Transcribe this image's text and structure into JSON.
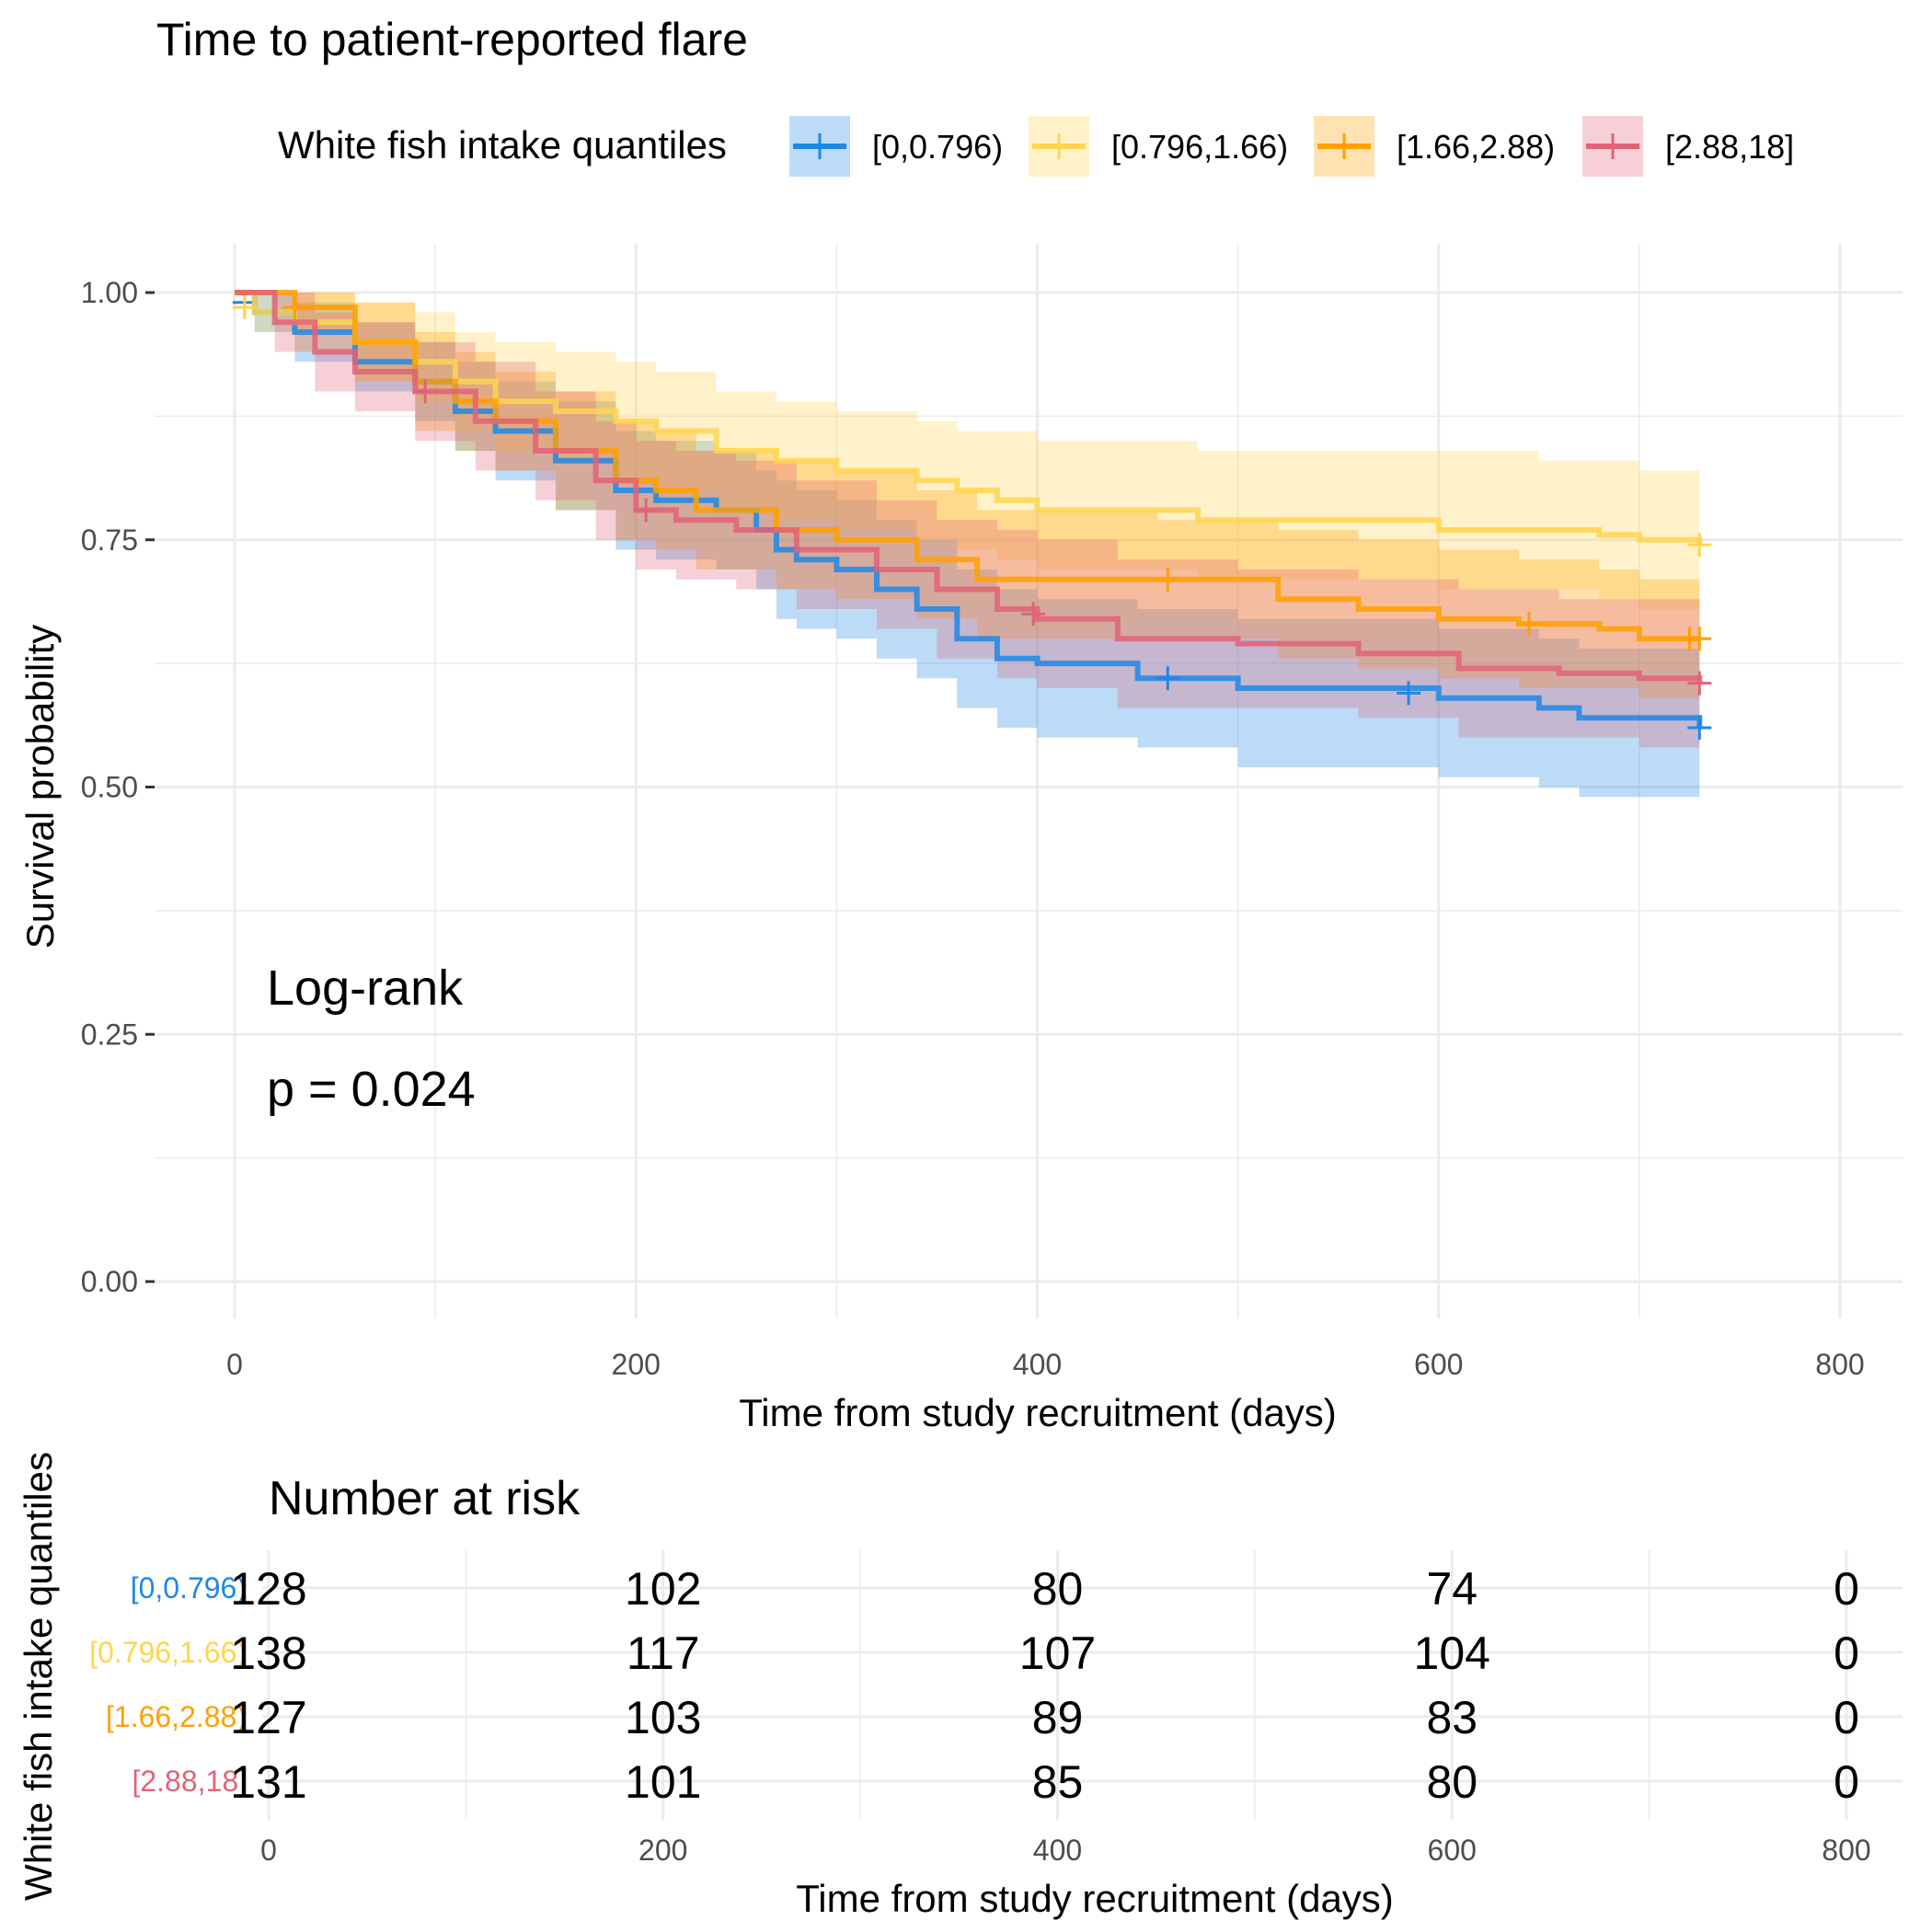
{
  "chart_data": [
    {
      "type": "line",
      "subtype": "kaplan-meier",
      "title": "Time to patient-reported flare",
      "xlabel": "Time from study recruitment (days)",
      "ylabel": "Survival probability",
      "xlim": [
        0,
        800
      ],
      "ylim": [
        0,
        1
      ],
      "xticks": [
        "0",
        "200",
        "400",
        "600",
        "800"
      ],
      "yticks": [
        "0.00",
        "0.25",
        "0.50",
        "0.75",
        "1.00"
      ],
      "grid": true,
      "legend": {
        "title": "White fish intake quantiles",
        "position": "top"
      },
      "annotation": {
        "line1": "Log-rank",
        "line2": "p = 0.024"
      },
      "series": [
        {
          "name": "[0,0.796)",
          "color": "#1E88E5",
          "x": [
            0,
            10,
            30,
            60,
            90,
            110,
            130,
            160,
            190,
            210,
            240,
            260,
            270,
            280,
            300,
            320,
            340,
            360,
            380,
            400,
            420,
            450,
            480,
            500,
            560,
            600,
            650,
            670,
            730
          ],
          "y": [
            1.0,
            0.98,
            0.96,
            0.93,
            0.91,
            0.88,
            0.86,
            0.83,
            0.8,
            0.79,
            0.78,
            0.76,
            0.74,
            0.73,
            0.72,
            0.7,
            0.68,
            0.65,
            0.63,
            0.625,
            0.625,
            0.61,
            0.61,
            0.6,
            0.6,
            0.59,
            0.58,
            0.57,
            0.56
          ],
          "lower": [
            1.0,
            0.96,
            0.93,
            0.9,
            0.87,
            0.84,
            0.81,
            0.78,
            0.74,
            0.73,
            0.72,
            0.7,
            0.67,
            0.66,
            0.65,
            0.63,
            0.61,
            0.58,
            0.56,
            0.55,
            0.55,
            0.54,
            0.54,
            0.52,
            0.52,
            0.51,
            0.5,
            0.49,
            0.48
          ],
          "upper": [
            1.0,
            1.0,
            0.99,
            0.97,
            0.95,
            0.93,
            0.91,
            0.89,
            0.86,
            0.85,
            0.84,
            0.82,
            0.81,
            0.8,
            0.79,
            0.77,
            0.75,
            0.72,
            0.7,
            0.69,
            0.69,
            0.68,
            0.68,
            0.67,
            0.67,
            0.66,
            0.65,
            0.64,
            0.63
          ],
          "censored": [
            [
              5,
              0.99
            ],
            [
              465,
              0.61
            ],
            [
              585,
              0.595
            ],
            [
              730,
              0.56
            ]
          ]
        },
        {
          "name": "[0.796,1.66)",
          "color": "#FFD54F",
          "x": [
            0,
            10,
            30,
            60,
            90,
            110,
            130,
            160,
            190,
            210,
            240,
            270,
            300,
            340,
            360,
            380,
            400,
            420,
            480,
            520,
            600,
            650,
            680,
            700,
            730
          ],
          "y": [
            1.0,
            0.98,
            0.97,
            0.95,
            0.93,
            0.91,
            0.89,
            0.88,
            0.87,
            0.86,
            0.84,
            0.83,
            0.82,
            0.81,
            0.8,
            0.79,
            0.78,
            0.78,
            0.77,
            0.77,
            0.76,
            0.76,
            0.755,
            0.75,
            0.745
          ],
          "lower": [
            1.0,
            0.96,
            0.94,
            0.91,
            0.89,
            0.86,
            0.84,
            0.83,
            0.81,
            0.8,
            0.78,
            0.77,
            0.76,
            0.75,
            0.74,
            0.73,
            0.72,
            0.72,
            0.71,
            0.71,
            0.7,
            0.7,
            0.69,
            0.68,
            0.67
          ],
          "upper": [
            1.0,
            1.0,
            1.0,
            0.99,
            0.98,
            0.96,
            0.95,
            0.94,
            0.93,
            0.92,
            0.9,
            0.89,
            0.88,
            0.87,
            0.86,
            0.86,
            0.85,
            0.85,
            0.84,
            0.84,
            0.84,
            0.83,
            0.83,
            0.82,
            0.82
          ],
          "censored": [
            [
              5,
              0.985
            ],
            [
              730,
              0.745
            ]
          ]
        },
        {
          "name": "[1.66,2.88)",
          "color": "#FFA000",
          "x": [
            0,
            30,
            60,
            90,
            110,
            130,
            160,
            190,
            210,
            230,
            270,
            300,
            340,
            370,
            400,
            460,
            520,
            560,
            600,
            640,
            680,
            700,
            730
          ],
          "y": [
            1.0,
            0.985,
            0.95,
            0.91,
            0.89,
            0.87,
            0.84,
            0.81,
            0.8,
            0.78,
            0.76,
            0.75,
            0.73,
            0.71,
            0.71,
            0.71,
            0.69,
            0.68,
            0.67,
            0.665,
            0.66,
            0.65,
            0.65
          ],
          "lower": [
            1.0,
            0.96,
            0.91,
            0.86,
            0.84,
            0.82,
            0.78,
            0.75,
            0.74,
            0.72,
            0.7,
            0.69,
            0.67,
            0.65,
            0.65,
            0.65,
            0.63,
            0.62,
            0.61,
            0.6,
            0.6,
            0.59,
            0.59
          ],
          "upper": [
            1.0,
            1.0,
            0.99,
            0.96,
            0.94,
            0.92,
            0.9,
            0.87,
            0.86,
            0.84,
            0.83,
            0.82,
            0.8,
            0.78,
            0.78,
            0.77,
            0.76,
            0.75,
            0.74,
            0.73,
            0.72,
            0.71,
            0.71
          ],
          "censored": [
            [
              30,
              0.985
            ],
            [
              465,
              0.71
            ],
            [
              645,
              0.665
            ],
            [
              725,
              0.65
            ],
            [
              730,
              0.65
            ]
          ]
        },
        {
          "name": "[2.88,18]",
          "color": "#E06377",
          "x": [
            0,
            20,
            40,
            60,
            90,
            120,
            150,
            180,
            200,
            220,
            250,
            280,
            320,
            350,
            380,
            400,
            440,
            500,
            560,
            610,
            660,
            700,
            730
          ],
          "y": [
            1.0,
            0.97,
            0.94,
            0.92,
            0.9,
            0.87,
            0.84,
            0.81,
            0.78,
            0.77,
            0.76,
            0.74,
            0.72,
            0.7,
            0.68,
            0.67,
            0.65,
            0.645,
            0.635,
            0.62,
            0.615,
            0.61,
            0.605
          ],
          "lower": [
            1.0,
            0.94,
            0.9,
            0.88,
            0.85,
            0.82,
            0.79,
            0.75,
            0.72,
            0.71,
            0.7,
            0.68,
            0.66,
            0.63,
            0.61,
            0.6,
            0.58,
            0.58,
            0.57,
            0.55,
            0.55,
            0.54,
            0.54
          ],
          "upper": [
            1.0,
            1.0,
            0.98,
            0.97,
            0.95,
            0.93,
            0.9,
            0.87,
            0.85,
            0.84,
            0.83,
            0.81,
            0.79,
            0.77,
            0.76,
            0.75,
            0.73,
            0.72,
            0.71,
            0.7,
            0.69,
            0.69,
            0.68
          ],
          "censored": [
            [
              95,
              0.9
            ],
            [
              205,
              0.78
            ],
            [
              398,
              0.675
            ],
            [
              730,
              0.605
            ]
          ]
        }
      ]
    },
    {
      "type": "table",
      "title": "Number at risk",
      "xlabel": "Time from study recruitment (days)",
      "ylabel": "White fish intake quantiles",
      "xlim": [
        0,
        800
      ],
      "time_points": [
        0,
        200,
        400,
        600,
        800
      ],
      "xticks": [
        "0",
        "200",
        "400",
        "600",
        "800"
      ],
      "rows": [
        {
          "name": "[0,0.796)",
          "color": "#1E88E5",
          "values": [
            "128",
            "102",
            "80",
            "74",
            "0"
          ]
        },
        {
          "name": "[0.796,1.66)",
          "color": "#FFD54F",
          "values": [
            "138",
            "117",
            "107",
            "104",
            "0"
          ]
        },
        {
          "name": "[1.66,2.88)",
          "color": "#FFA000",
          "values": [
            "127",
            "103",
            "89",
            "83",
            "0"
          ]
        },
        {
          "name": "[2.88,18]",
          "color": "#E06377",
          "values": [
            "131",
            "101",
            "85",
            "80",
            "0"
          ]
        }
      ]
    }
  ]
}
